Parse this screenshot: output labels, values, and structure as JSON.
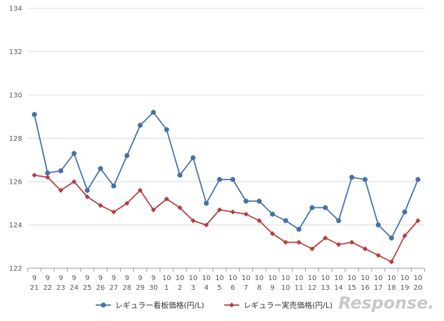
{
  "chart_data": {
    "type": "line",
    "title": "",
    "xlabel": "",
    "ylabel": "",
    "ylim": [
      122,
      134
    ],
    "yticks": [
      122,
      124,
      126,
      128,
      130,
      132,
      134
    ],
    "grid": true,
    "legend_position": "bottom",
    "categories": [
      {
        "month": "9",
        "day": "21"
      },
      {
        "month": "9",
        "day": "22"
      },
      {
        "month": "9",
        "day": "23"
      },
      {
        "month": "9",
        "day": "24"
      },
      {
        "month": "9",
        "day": "25"
      },
      {
        "month": "9",
        "day": "26"
      },
      {
        "month": "9",
        "day": "27"
      },
      {
        "month": "9",
        "day": "28"
      },
      {
        "month": "9",
        "day": "29"
      },
      {
        "month": "9",
        "day": "30"
      },
      {
        "month": "10",
        "day": "1"
      },
      {
        "month": "10",
        "day": "2"
      },
      {
        "month": "10",
        "day": "3"
      },
      {
        "month": "10",
        "day": "4"
      },
      {
        "month": "10",
        "day": "5"
      },
      {
        "month": "10",
        "day": "6"
      },
      {
        "month": "10",
        "day": "7"
      },
      {
        "month": "10",
        "day": "8"
      },
      {
        "month": "10",
        "day": "9"
      },
      {
        "month": "10",
        "day": "10"
      },
      {
        "month": "10",
        "day": "11"
      },
      {
        "month": "10",
        "day": "12"
      },
      {
        "month": "10",
        "day": "13"
      },
      {
        "month": "10",
        "day": "14"
      },
      {
        "month": "10",
        "day": "15"
      },
      {
        "month": "10",
        "day": "16"
      },
      {
        "month": "10",
        "day": "17"
      },
      {
        "month": "10",
        "day": "18"
      },
      {
        "month": "10",
        "day": "19"
      },
      {
        "month": "10",
        "day": "20"
      }
    ],
    "series": [
      {
        "name": "レギュラー看板価格(円/L)",
        "color": "#4472a8",
        "marker": "circle",
        "values": [
          129.1,
          126.4,
          126.5,
          127.3,
          125.6,
          126.6,
          125.8,
          127.2,
          128.6,
          129.2,
          128.4,
          126.3,
          127.1,
          125.0,
          126.1,
          126.1,
          125.1,
          125.1,
          124.5,
          124.2,
          123.8,
          124.8,
          124.8,
          124.2,
          126.2,
          126.1,
          124.0,
          123.4,
          124.6,
          126.1
        ]
      },
      {
        "name": "レギュラー実売価格(円/L)",
        "color": "#b33f3f",
        "marker": "diamond",
        "values": [
          126.3,
          126.2,
          125.6,
          126.0,
          125.3,
          124.9,
          124.6,
          125.0,
          125.6,
          124.7,
          125.2,
          124.8,
          124.2,
          124.0,
          124.7,
          124.6,
          124.5,
          124.2,
          123.6,
          123.2,
          123.2,
          122.9,
          123.4,
          123.1,
          123.2,
          122.9,
          122.6,
          122.3,
          123.5,
          124.2
        ]
      }
    ]
  },
  "watermark": {
    "text": "Response."
  }
}
